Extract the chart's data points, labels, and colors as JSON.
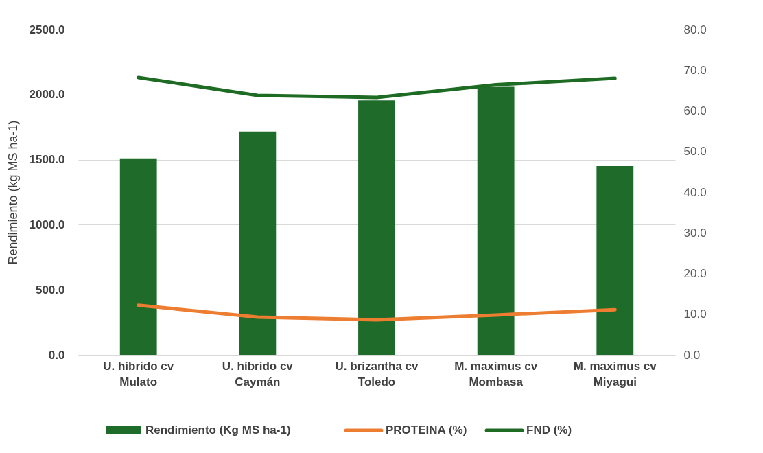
{
  "chart_data": {
    "type": "bar",
    "categories": [
      "U. híbrido cv Mulato",
      "U. híbrido cv Caymán",
      "U. brizantha cv Toledo",
      "M. maximus cv Mombasa",
      "M. maximus cv Miyagui"
    ],
    "series": [
      {
        "name": "Rendimiento (Kg MS ha-1)",
        "type": "bar",
        "color": "#1e6b2a",
        "values": [
          1510,
          1715,
          1955,
          2060,
          1450
        ]
      },
      {
        "name": "PROTEINA (%)",
        "type": "line",
        "axis": "y2",
        "color": "#ed7d31",
        "values": [
          12.2,
          9.3,
          8.6,
          9.8,
          11.1
        ]
      },
      {
        "name": "FND (%)",
        "type": "line",
        "axis": "y2",
        "color": "#1e6b24",
        "values": [
          68.2,
          63.8,
          63.3,
          66.4,
          68.0
        ]
      }
    ],
    "ylabel": "Rendimiento (kg MS ha-1)",
    "ylim": [
      0,
      2500
    ],
    "yticks": [
      {
        "value": 0,
        "label": "0.0"
      },
      {
        "value": 500,
        "label": "500.0"
      },
      {
        "value": 1000,
        "label": "1000.0"
      },
      {
        "value": 1500,
        "label": "1500.0"
      },
      {
        "value": 2000,
        "label": "2000.0"
      },
      {
        "value": 2500,
        "label": "2500.0"
      }
    ],
    "y2lim": [
      0,
      80
    ],
    "y2ticks": [
      {
        "value": 0,
        "label": "0.0"
      },
      {
        "value": 10,
        "label": "10.0"
      },
      {
        "value": 20,
        "label": "20.0"
      },
      {
        "value": 30,
        "label": "30.0"
      },
      {
        "value": 40,
        "label": "40.0"
      },
      {
        "value": 50,
        "label": "50.0"
      },
      {
        "value": 60,
        "label": "60.0"
      },
      {
        "value": 70,
        "label": "70.0"
      },
      {
        "value": 80,
        "label": "80.0"
      }
    ],
    "grid": "y",
    "legend": "bottom"
  }
}
